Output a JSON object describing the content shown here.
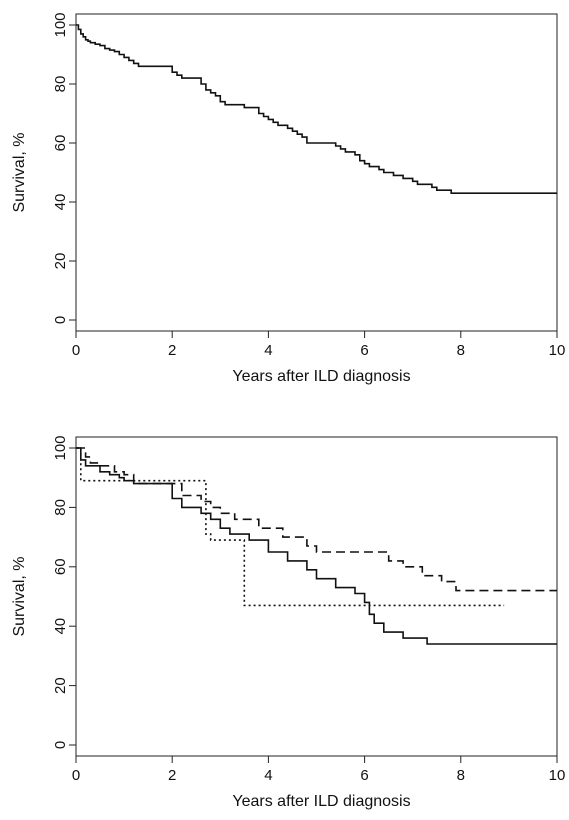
{
  "chart_data": [
    {
      "type": "line",
      "xlabel": "Years after ILD diagnosis",
      "ylabel": "Survival, %",
      "xlim": [
        0,
        10
      ],
      "ylim": [
        0,
        100
      ],
      "xticks": [
        "0",
        "2",
        "4",
        "6",
        "8",
        "10"
      ],
      "yticks": [
        "0",
        "20",
        "40",
        "60",
        "80",
        "100"
      ],
      "series": [
        {
          "style": "solid",
          "step": true,
          "x": [
            0,
            0.05,
            0.1,
            0.15,
            0.2,
            0.25,
            0.3,
            0.4,
            0.5,
            0.6,
            0.7,
            0.8,
            0.9,
            1.0,
            1.1,
            1.2,
            1.3,
            1.5,
            1.6,
            2.0,
            2.1,
            2.2,
            2.4,
            2.5,
            2.6,
            2.7,
            2.8,
            2.9,
            3.0,
            3.1,
            3.3,
            3.5,
            3.7,
            3.8,
            3.9,
            4.0,
            4.1,
            4.2,
            4.4,
            4.5,
            4.6,
            4.7,
            4.8,
            5.0,
            5.3,
            5.4,
            5.5,
            5.6,
            5.8,
            5.9,
            6.0,
            6.1,
            6.3,
            6.4,
            6.6,
            6.8,
            7.0,
            7.1,
            7.4,
            7.5,
            7.8,
            10.0
          ],
          "y": [
            100,
            98.5,
            97,
            96,
            95,
            94.5,
            94,
            93.5,
            93,
            92,
            91.5,
            91,
            90,
            89,
            88,
            87,
            86,
            86,
            86,
            84,
            83,
            82,
            82,
            82,
            80,
            78,
            77,
            76,
            74,
            73,
            73,
            72,
            72,
            70,
            69,
            68,
            67,
            66,
            65,
            64,
            63,
            62,
            60,
            60,
            60,
            59,
            58,
            57,
            56,
            54,
            53,
            52,
            51,
            50,
            49,
            48,
            47,
            46,
            45,
            44,
            43,
            43
          ]
        }
      ]
    },
    {
      "type": "line",
      "xlabel": "Years after ILD diagnosis",
      "ylabel": "Survival, %",
      "xlim": [
        0,
        10
      ],
      "ylim": [
        0,
        100
      ],
      "xticks": [
        "0",
        "2",
        "4",
        "6",
        "8",
        "10"
      ],
      "yticks": [
        "0",
        "20",
        "40",
        "60",
        "80",
        "100"
      ],
      "series": [
        {
          "style": "solid",
          "step": true,
          "x": [
            0,
            0.1,
            0.2,
            0.3,
            0.5,
            0.7,
            0.9,
            1.0,
            1.2,
            1.5,
            2.0,
            2.2,
            2.6,
            2.8,
            3.0,
            3.2,
            3.6,
            3.8,
            4.0,
            4.4,
            4.8,
            5.0,
            5.4,
            5.8,
            6.0,
            6.1,
            6.2,
            6.4,
            6.8,
            7.3,
            10.0
          ],
          "y": [
            100,
            96,
            94,
            94,
            92,
            91,
            90,
            89,
            88,
            88,
            83,
            80,
            78,
            76,
            73,
            71,
            69,
            69,
            65,
            62,
            59,
            56,
            53,
            51,
            48,
            44,
            41,
            38,
            36,
            34,
            34
          ]
        },
        {
          "style": "dashed",
          "step": true,
          "x": [
            0,
            0.2,
            0.3,
            0.5,
            0.8,
            1.0,
            1.2,
            2.0,
            2.2,
            2.6,
            2.8,
            3.0,
            3.3,
            3.8,
            4.3,
            4.8,
            5.0,
            5.5,
            6.5,
            6.8,
            7.2,
            7.6,
            7.9,
            10.0
          ],
          "y": [
            100,
            97,
            95,
            94,
            92,
            91,
            88,
            88,
            84,
            82,
            80,
            78,
            76,
            73,
            70,
            67,
            65,
            65,
            62,
            60,
            57,
            55,
            52,
            52
          ]
        },
        {
          "style": "dotted",
          "step": true,
          "x": [
            0,
            0.1,
            2.7,
            2.8,
            3.5,
            8.9
          ],
          "y": [
            100,
            89,
            71,
            69,
            47,
            47
          ]
        }
      ]
    }
  ]
}
